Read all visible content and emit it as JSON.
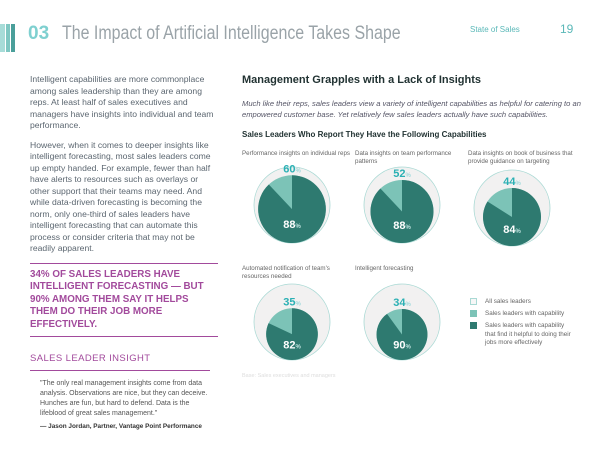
{
  "header": {
    "number": "03",
    "title": "The Impact of Artificial Intelligence Takes Shape",
    "report": "State of Sales",
    "page": "19"
  },
  "left": {
    "para1": "Intelligent capabilities are more commonplace among sales leadership than they are among reps. At least half of sales executives and managers have insights into individual and team performance.",
    "para2": "However, when it comes to deeper insights like intelligent forecasting, most sales leaders come up empty handed. For example, fewer than half have alerts to resources such as overlays or other support that their teams may need. And while data-driven forecasting is becoming the norm, only one-third of sales leaders have intelligent forecasting that can automate this process or consider criteria that may not be readily apparent.",
    "callout": "34% OF SALES LEADERS HAVE INTELLIGENT FORECASTING — BUT 90% AMONG THEM SAY IT HELPS THEM DO THEIR JOB MORE EFFECTIVELY.",
    "insight_title": "SALES LEADER INSIGHT",
    "quote": "\"The only real management insights come from data analysis. Observations are nice, but they can deceive. Hunches are fun, but hard to defend. Data is the lifeblood of great sales management.\"",
    "attribution": "— Jason Jordan, Partner, Vantage Point Performance"
  },
  "main": {
    "heading": "Management Grapples with a Lack of Insights",
    "subtitle": "Much like their reps, sales leaders view a variety of intelligent capabilities as helpful for catering to an empowered customer base. Yet relatively few sales leaders actually have such capabilities.",
    "base": "Base: Sales executives and managers"
  },
  "colors": {
    "outer": "#f2f1f1",
    "outer_stroke": "#a9d9d4",
    "capability": "#7cc3b7",
    "helpful": "#2e7a70",
    "pct": "#2ab0b4"
  },
  "chart_data": {
    "type": "pie",
    "title": "Sales Leaders Who Report They Have the Following Capabilities",
    "items": [
      {
        "label": "Performance insights on individual reps",
        "have": 60,
        "helpful": 88
      },
      {
        "label": "Data insights on team performance patterns",
        "have": 52,
        "helpful": 88
      },
      {
        "label": "Data insights on book of business that provide guidance on targeting",
        "have": 44,
        "helpful": 84
      },
      {
        "label": "Automated notification of team's resources needed",
        "have": 35,
        "helpful": 82
      },
      {
        "label": "Intelligent forecasting",
        "have": 34,
        "helpful": 90
      }
    ],
    "legend": [
      "All sales leaders",
      "Sales leaders with capability",
      "Sales leaders with capability that find it helpful to doing their jobs more effectively"
    ]
  }
}
